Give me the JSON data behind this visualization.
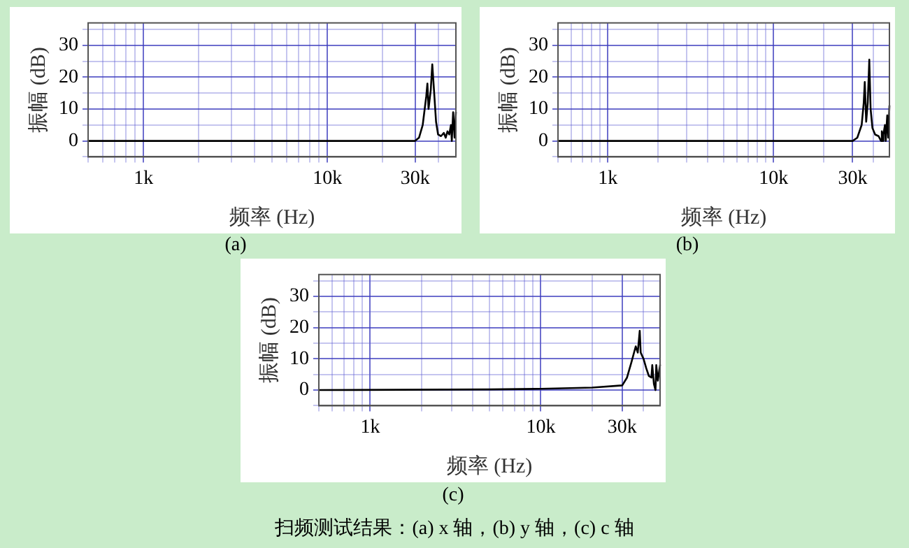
{
  "chart_data": [
    {
      "type": "line",
      "xlabel": "频率 (Hz)",
      "ylabel": "振幅 (dB)",
      "log": "x",
      "color": "#000000",
      "marker": "none",
      "grid": true,
      "annotations": [
        "(a)"
      ],
      "x": [
        500,
        30000,
        31500,
        33000,
        34500,
        35000,
        35500,
        36500,
        37200,
        38000,
        39000,
        40000,
        41500,
        43000,
        44000,
        45000,
        46000,
        47000,
        47500,
        48300,
        49200,
        50000
      ],
      "values": [
        0,
        0,
        1,
        5,
        14,
        18,
        10,
        16,
        24,
        16,
        6,
        2,
        1.5,
        2.5,
        1,
        3,
        2,
        5,
        0,
        9,
        1,
        9
      ],
      "xlim": [
        500,
        50000
      ],
      "ylim": [
        -5,
        37
      ],
      "xticks": [
        {
          "value": 500,
          "label": null
        },
        {
          "value": 600,
          "label": null
        },
        {
          "value": 700,
          "label": null
        },
        {
          "value": 800,
          "label": null
        },
        {
          "value": 900,
          "label": null
        },
        {
          "value": 1000,
          "label": "1k"
        },
        {
          "value": 2000,
          "label": null
        },
        {
          "value": 3000,
          "label": null
        },
        {
          "value": 4000,
          "label": null
        },
        {
          "value": 5000,
          "label": null
        },
        {
          "value": 6000,
          "label": null
        },
        {
          "value": 7000,
          "label": null
        },
        {
          "value": 8000,
          "label": null
        },
        {
          "value": 9000,
          "label": null
        },
        {
          "value": 10000,
          "label": "10k"
        },
        {
          "value": 20000,
          "label": null
        },
        {
          "value": 30000,
          "label": "30k"
        },
        {
          "value": 40000,
          "label": null
        }
      ],
      "yticks": [
        {
          "value": -5,
          "label": null
        },
        0,
        {
          "value": 5,
          "label": null
        },
        10,
        {
          "value": 15,
          "label": null
        },
        20,
        {
          "value": 25,
          "label": null
        },
        30,
        {
          "value": 35,
          "label": null
        }
      ]
    },
    {
      "type": "line",
      "xlabel": "频率 (Hz)",
      "ylabel": "振幅 (dB)",
      "log": "x",
      "color": "#000000",
      "marker": "none",
      "grid": true,
      "annotations": [
        "(b)"
      ],
      "x": [
        500,
        30000,
        32000,
        34000,
        35000,
        35500,
        36200,
        37000,
        37800,
        38500,
        39500,
        41000,
        43000,
        44500,
        45000,
        45500,
        46000,
        47000,
        47500,
        48500,
        49200,
        50000
      ],
      "values": [
        0,
        0,
        1,
        5,
        12,
        18.5,
        6,
        12,
        25.5,
        10,
        4,
        2,
        1.5,
        0,
        3,
        0,
        2,
        5,
        0,
        8,
        1,
        11
      ],
      "xlim": [
        500,
        50000
      ],
      "ylim": [
        -5,
        37
      ],
      "xticks": [
        {
          "value": 500,
          "label": null
        },
        {
          "value": 600,
          "label": null
        },
        {
          "value": 700,
          "label": null
        },
        {
          "value": 800,
          "label": null
        },
        {
          "value": 900,
          "label": null
        },
        {
          "value": 1000,
          "label": "1k"
        },
        {
          "value": 2000,
          "label": null
        },
        {
          "value": 3000,
          "label": null
        },
        {
          "value": 4000,
          "label": null
        },
        {
          "value": 5000,
          "label": null
        },
        {
          "value": 6000,
          "label": null
        },
        {
          "value": 7000,
          "label": null
        },
        {
          "value": 8000,
          "label": null
        },
        {
          "value": 9000,
          "label": null
        },
        {
          "value": 10000,
          "label": "10k"
        },
        {
          "value": 20000,
          "label": null
        },
        {
          "value": 30000,
          "label": "30k"
        },
        {
          "value": 40000,
          "label": null
        }
      ],
      "yticks": [
        {
          "value": -5,
          "label": null
        },
        0,
        {
          "value": 5,
          "label": null
        },
        10,
        {
          "value": 15,
          "label": null
        },
        20,
        {
          "value": 25,
          "label": null
        },
        30,
        {
          "value": 35,
          "label": null
        }
      ]
    },
    {
      "type": "line",
      "xlabel": "频率 (Hz)",
      "ylabel": "振幅 (dB)",
      "log": "x",
      "color": "#000000",
      "marker": "none",
      "grid": true,
      "annotations": [
        "(c)",
        "扫频测试结果：(a) x 轴，(b) y 轴，(c) c 轴"
      ],
      "x": [
        500,
        5000,
        10000,
        20000,
        30000,
        32000,
        34000,
        36000,
        37000,
        38000,
        38500,
        40000,
        41500,
        43000,
        44500,
        45000,
        46000,
        47000,
        47500,
        48500,
        50000
      ],
      "values": [
        0,
        0.2,
        0.4,
        0.8,
        1.5,
        4,
        9,
        14,
        12,
        19,
        12,
        10,
        7,
        4.5,
        4,
        8,
        2,
        0,
        8,
        3,
        8
      ],
      "xlim": [
        500,
        50000
      ],
      "ylim": [
        -5,
        37
      ],
      "xticks": [
        {
          "value": 500,
          "label": null
        },
        {
          "value": 600,
          "label": null
        },
        {
          "value": 700,
          "label": null
        },
        {
          "value": 800,
          "label": null
        },
        {
          "value": 900,
          "label": null
        },
        {
          "value": 1000,
          "label": "1k"
        },
        {
          "value": 2000,
          "label": null
        },
        {
          "value": 3000,
          "label": null
        },
        {
          "value": 4000,
          "label": null
        },
        {
          "value": 5000,
          "label": null
        },
        {
          "value": 6000,
          "label": null
        },
        {
          "value": 7000,
          "label": null
        },
        {
          "value": 8000,
          "label": null
        },
        {
          "value": 9000,
          "label": null
        },
        {
          "value": 10000,
          "label": "10k"
        },
        {
          "value": 20000,
          "label": null
        },
        {
          "value": 30000,
          "label": "30k"
        },
        {
          "value": 40000,
          "label": null
        }
      ],
      "yticks": [
        {
          "value": -5,
          "label": null
        },
        0,
        {
          "value": 5,
          "label": null
        },
        10,
        {
          "value": 15,
          "label": null
        },
        20,
        {
          "value": 25,
          "label": null
        },
        30,
        {
          "value": 35,
          "label": null
        }
      ]
    }
  ]
}
